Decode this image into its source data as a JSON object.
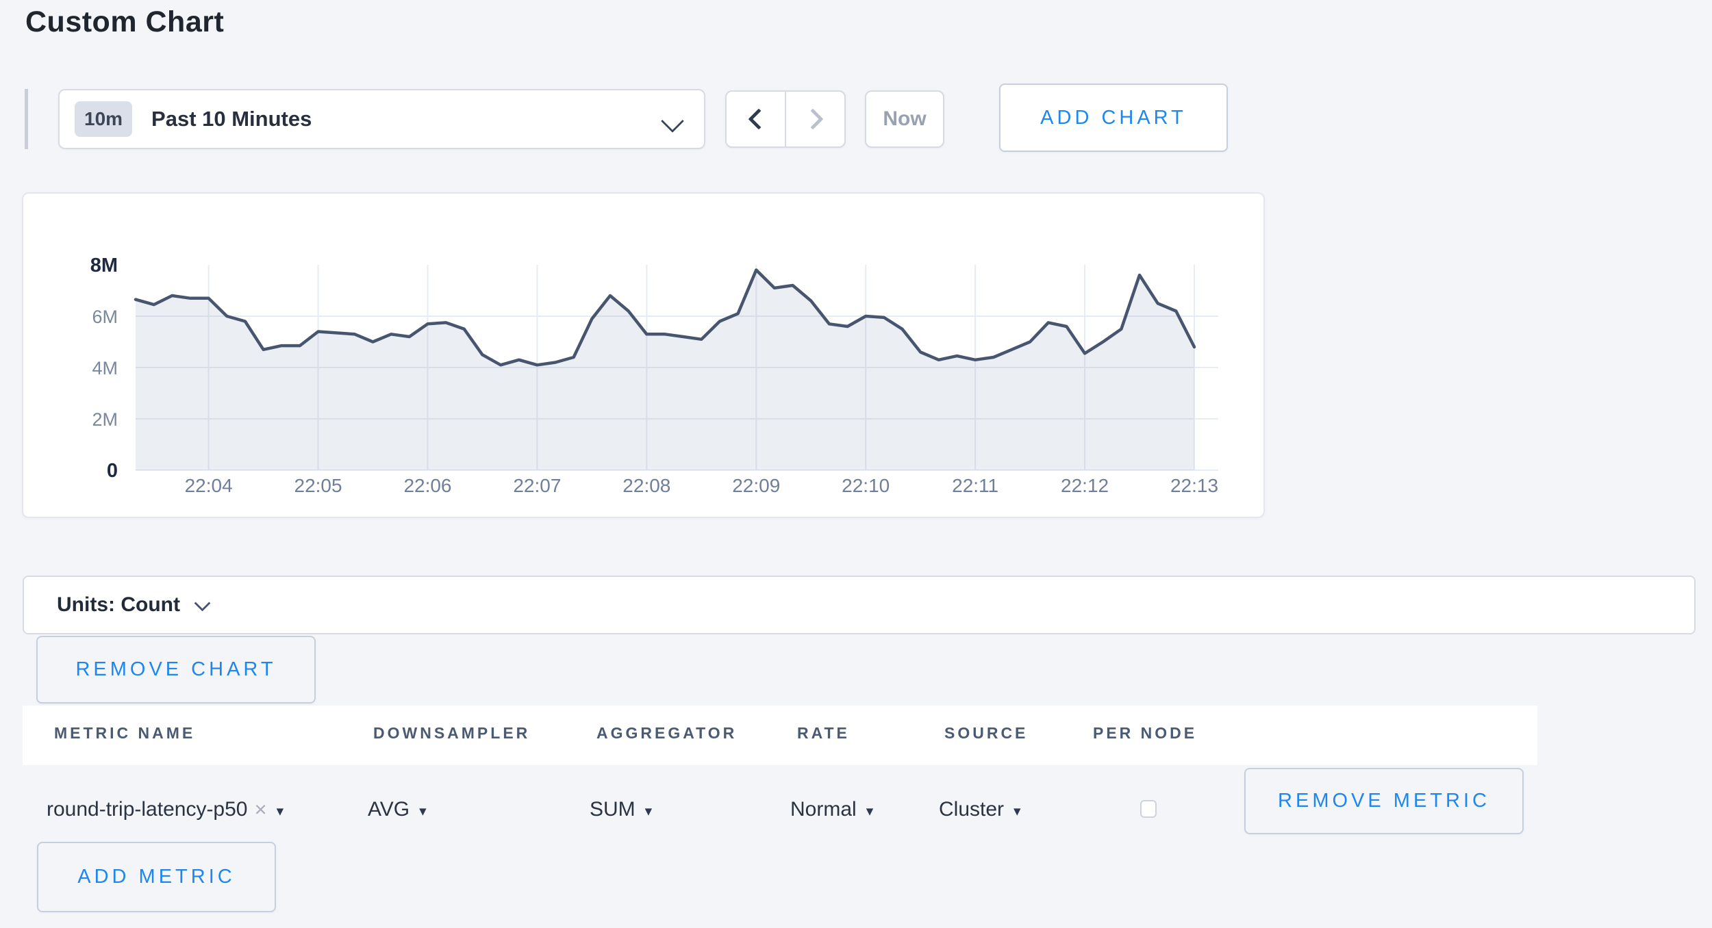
{
  "page": {
    "title": "Custom Chart",
    "background": "#f4f5f9"
  },
  "toolbar": {
    "time_badge": "10m",
    "time_label": "Past 10 Minutes",
    "now_label": "Now",
    "add_chart_label": "ADD CHART"
  },
  "chart_data": {
    "type": "area",
    "title": "",
    "xlabel": "",
    "ylabel": "",
    "ylim": [
      0,
      8
    ],
    "y_unit_suffix": "M",
    "grid": true,
    "legend": false,
    "x_tick_labels": [
      "22:04",
      "22:05",
      "22:06",
      "22:07",
      "22:08",
      "22:09",
      "22:10",
      "22:11",
      "22:12",
      "22:13"
    ],
    "x_tick_indices": [
      4,
      10,
      16,
      22,
      28,
      34,
      40,
      46,
      52,
      58
    ],
    "y_ticks": [
      {
        "label": "0",
        "value": 0,
        "strong": true
      },
      {
        "label": "2M",
        "value": 2,
        "strong": false
      },
      {
        "label": "4M",
        "value": 4,
        "strong": false
      },
      {
        "label": "6M",
        "value": 6,
        "strong": false
      },
      {
        "label": "8M",
        "value": 8,
        "strong": true
      }
    ],
    "values_millions": [
      6.65,
      6.45,
      6.8,
      6.7,
      6.7,
      6.0,
      5.8,
      4.7,
      4.85,
      4.85,
      5.4,
      5.35,
      5.3,
      5.0,
      5.3,
      5.2,
      5.7,
      5.75,
      5.5,
      4.5,
      4.1,
      4.3,
      4.1,
      4.2,
      4.4,
      5.9,
      6.8,
      6.2,
      5.3,
      5.3,
      5.2,
      5.1,
      5.8,
      6.1,
      7.8,
      7.1,
      7.2,
      6.6,
      5.7,
      5.6,
      6.0,
      5.95,
      5.5,
      4.6,
      4.3,
      4.45,
      4.3,
      4.4,
      4.7,
      5.0,
      5.75,
      5.6,
      4.55,
      5.0,
      5.5,
      7.6,
      6.5,
      6.2,
      4.8
    ]
  },
  "units_bar": {
    "label": "Units: Count"
  },
  "chart_actions": {
    "remove_chart_label": "REMOVE CHART"
  },
  "metrics_table": {
    "headers": [
      "METRIC NAME",
      "DOWNSAMPLER",
      "AGGREGATOR",
      "RATE",
      "SOURCE",
      "PER NODE"
    ],
    "row": {
      "metric_name": "round-trip-latency-p50",
      "downsampler": "AVG",
      "aggregator": "SUM",
      "rate": "Normal",
      "source": "Cluster",
      "per_node_checked": false,
      "remove_metric_label": "REMOVE METRIC"
    },
    "add_metric_label": "ADD METRIC"
  },
  "icons": {
    "clear": "×",
    "caret_down": "▾"
  },
  "colors": {
    "accent_blue": "#1e87ee",
    "line_stroke": "#47566e",
    "area_fill": "rgba(156,169,193,0.20)",
    "grid": "#e7ebf2",
    "axis_label": "#7a87a0",
    "axis_label_strong": "#1d2a42"
  }
}
